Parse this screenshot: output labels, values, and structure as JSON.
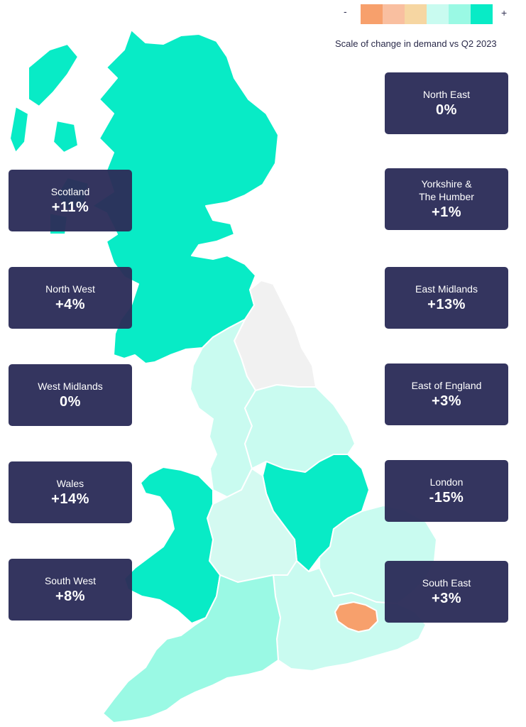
{
  "scale": {
    "minus": "-",
    "plus": "+",
    "caption": "Scale of change in demand vs Q2 2023",
    "colors": [
      "#F7A06C",
      "#F9BFA0",
      "#F6D6A2",
      "#C9FBF0",
      "#9AF9E4",
      "#08EBC6"
    ]
  },
  "regions": [
    {
      "id": "scotland",
      "name": "Scotland",
      "value": "+11%",
      "color": "#08EBC6"
    },
    {
      "id": "north-west",
      "name": "North West",
      "value": "+4%",
      "color": "#C9FBF0"
    },
    {
      "id": "west-midlands",
      "name": "West Midlands",
      "value": "0%",
      "color": "#D4FAF1"
    },
    {
      "id": "wales",
      "name": "Wales",
      "value": "+14%",
      "color": "#08EBC6"
    },
    {
      "id": "south-west",
      "name": "South West",
      "value": "+8%",
      "color": "#9AF9E4"
    },
    {
      "id": "north-east",
      "name": "North East",
      "value": "0%",
      "color": "#F1F1F1"
    },
    {
      "id": "yorkshire",
      "name": "Yorkshire  &\nThe Humber",
      "value": "+1%",
      "color": "#C9FBF0"
    },
    {
      "id": "east-midlands",
      "name": "East Midlands",
      "value": "+13%",
      "color": "#08EBC6"
    },
    {
      "id": "east-of-england",
      "name": "East of England",
      "value": "+3%",
      "color": "#C9FBF0"
    },
    {
      "id": "london",
      "name": "London",
      "value": "-15%",
      "color": "#F7A06C"
    },
    {
      "id": "south-east",
      "name": "South East",
      "value": "+3%",
      "color": "#C9FBF0"
    }
  ]
}
